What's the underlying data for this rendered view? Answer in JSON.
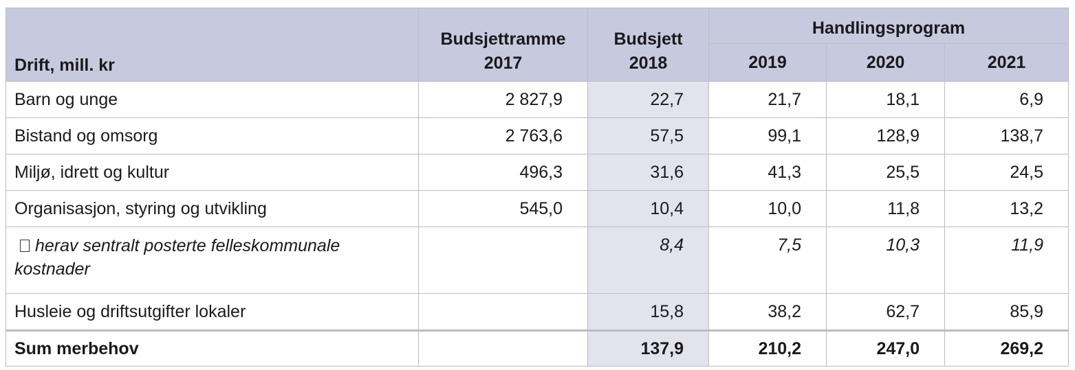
{
  "table": {
    "header": {
      "label_col": "Drift, mill. kr",
      "col_2017_line1": "Budsjettramme",
      "col_2017_line2": "2017",
      "col_2018_line1": "Budsjett",
      "col_2018_line2": "2018",
      "group": "Handlingsprogram",
      "years": [
        "2019",
        "2020",
        "2021"
      ]
    },
    "rows": [
      {
        "label": "Barn og unge",
        "frame_2017": "2 827,9",
        "budget_2018": "22,7",
        "y2019": "21,7",
        "y2020": "18,1",
        "y2021": "6,9"
      },
      {
        "label": "Bistand og omsorg",
        "frame_2017": "2 763,6",
        "budget_2018": "57,5",
        "y2019": "99,1",
        "y2020": "128,9",
        "y2021": "138,7"
      },
      {
        "label": "Miljø, idrett og kultur",
        "frame_2017": "496,3",
        "budget_2018": "31,6",
        "y2019": "41,3",
        "y2020": "25,5",
        "y2021": "24,5"
      },
      {
        "label": "Organisasjon, styring og utvikling",
        "frame_2017": "545,0",
        "budget_2018": "10,4",
        "y2019": "10,0",
        "y2020": "11,8",
        "y2021": "13,2"
      },
      {
        "label_line1": "herav sentralt posterte felleskommunale",
        "label_line2": "kostnader",
        "frame_2017": "",
        "budget_2018": "8,4",
        "y2019": "7,5",
        "y2020": "10,3",
        "y2021": "11,9"
      },
      {
        "label": "Husleie og driftsutgifter lokaler",
        "frame_2017": "",
        "budget_2018": "15,8",
        "y2019": "38,2",
        "y2020": "62,7",
        "y2021": "85,9"
      }
    ],
    "sum": {
      "label": "Sum merbehov",
      "frame_2017": "",
      "budget_2018": "137,9",
      "y2019": "210,2",
      "y2020": "247,0",
      "y2021": "269,2"
    }
  },
  "colors": {
    "header_bg": "#c7cadf",
    "budget_col_bg": "#e2e3ed",
    "border": "#b9bcc4"
  },
  "icons": {
    "sub_row_marker": "square-bullet-icon"
  }
}
